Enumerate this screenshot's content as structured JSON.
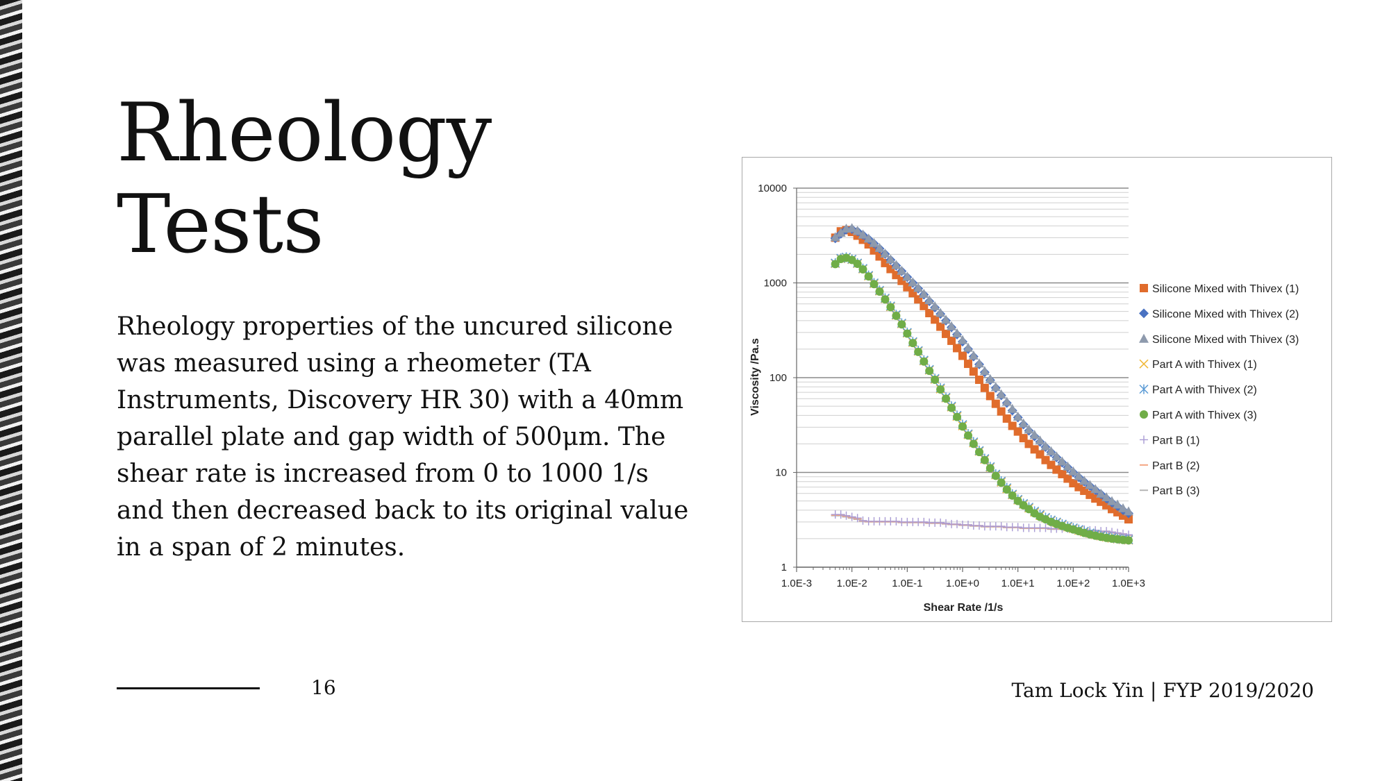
{
  "slide": {
    "title_line1": "Rheology",
    "title_line2": "Tests",
    "body": "Rheology properties of the uncured silicone was measured using a rheometer (TA Instruments, Discovery HR 30) with a 40mm parallel plate and gap width of 500μm. The shear rate is increased from 0 to 1000 1/s and then decreased back to its original value in a span of 2 minutes.",
    "page_number": "16",
    "footer_credit": "Tam Lock Yin | FYP 2019/2020"
  },
  "chart_data": {
    "type": "scatter",
    "xlabel": "Shear Rate /1/s",
    "ylabel": "Viscosity /Pa.s",
    "xscale": "log",
    "yscale": "log",
    "xlim": [
      0.001,
      1000
    ],
    "ylim": [
      1,
      10000
    ],
    "x_tick_labels": [
      "1.0E-3",
      "1.0E-2",
      "1.0E-1",
      "1.0E+0",
      "1.0E+1",
      "1.0E+2",
      "1.0E+3"
    ],
    "y_tick_labels": [
      "1",
      "10",
      "100",
      "1000",
      "10000"
    ],
    "grid": "horizontal major and minor",
    "legend_position": "right",
    "series": [
      {
        "name": "Silicone Mixed with Thivex (1)",
        "marker": "square",
        "color": "#e06c2c",
        "x": [
          0.005,
          0.0063,
          0.0079,
          0.01,
          0.0126,
          0.0158,
          0.02,
          0.0251,
          0.0316,
          0.0398,
          0.05,
          0.0631,
          0.0794,
          0.1,
          0.126,
          0.158,
          0.2,
          0.251,
          0.316,
          0.398,
          0.5,
          0.631,
          0.794,
          1,
          1.26,
          1.58,
          2,
          2.51,
          3.16,
          3.98,
          5,
          6.31,
          7.94,
          10,
          12.6,
          15.8,
          20,
          25.1,
          31.6,
          39.8,
          50,
          63.1,
          79.4,
          100,
          126,
          158,
          200,
          251,
          316,
          398,
          500,
          631,
          794,
          1000
        ],
        "y": [
          3000,
          3500,
          3600,
          3450,
          3150,
          2850,
          2550,
          2200,
          1900,
          1620,
          1400,
          1210,
          1050,
          900,
          780,
          670,
          570,
          480,
          410,
          345,
          290,
          245,
          205,
          170,
          140,
          116,
          95,
          78,
          64,
          53,
          44,
          37,
          31,
          27,
          23,
          20,
          17.5,
          15.5,
          13.5,
          12,
          10.7,
          9.6,
          8.6,
          7.7,
          7,
          6.4,
          5.8,
          5.3,
          4.9,
          4.5,
          4.1,
          3.8,
          3.5,
          3.2
        ]
      },
      {
        "name": "Silicone Mixed with Thivex (2)",
        "marker": "diamond",
        "color": "#4a72c2",
        "x": [
          0.005,
          0.0063,
          0.0079,
          0.01,
          0.0126,
          0.0158,
          0.02,
          0.0251,
          0.0316,
          0.0398,
          0.05,
          0.0631,
          0.0794,
          0.1,
          0.126,
          0.158,
          0.2,
          0.251,
          0.316,
          0.398,
          0.5,
          0.631,
          0.794,
          1,
          1.26,
          1.58,
          2,
          2.51,
          3.16,
          3.98,
          5,
          6.31,
          7.94,
          10,
          12.6,
          15.8,
          20,
          25.1,
          31.6,
          39.8,
          50,
          63.1,
          79.4,
          100,
          126,
          158,
          200,
          251,
          316,
          398,
          500,
          631,
          794,
          1000
        ],
        "y": [
          2950,
          3300,
          3650,
          3700,
          3500,
          3200,
          2900,
          2600,
          2300,
          2020,
          1750,
          1520,
          1330,
          1150,
          1000,
          870,
          750,
          640,
          550,
          470,
          400,
          340,
          285,
          240,
          200,
          167,
          138,
          114,
          94,
          78,
          65,
          54,
          45,
          38,
          32,
          27.5,
          24,
          21,
          18.5,
          16.3,
          14.4,
          12.7,
          11.3,
          10,
          8.9,
          8,
          7.2,
          6.5,
          5.9,
          5.3,
          4.8,
          4.4,
          4,
          3.7
        ]
      },
      {
        "name": "Silicone Mixed with Thivex (3)",
        "marker": "triangle",
        "color": "#8e9aad",
        "x": [
          0.005,
          0.0063,
          0.0079,
          0.01,
          0.0126,
          0.0158,
          0.02,
          0.0251,
          0.0316,
          0.0398,
          0.05,
          0.0631,
          0.0794,
          0.1,
          0.126,
          0.158,
          0.2,
          0.251,
          0.316,
          0.398,
          0.5,
          0.631,
          0.794,
          1,
          1.26,
          1.58,
          2,
          2.51,
          3.16,
          3.98,
          5,
          6.31,
          7.94,
          10,
          12.6,
          15.8,
          20,
          25.1,
          31.6,
          39.8,
          50,
          63.1,
          79.4,
          100,
          126,
          158,
          200,
          251,
          316,
          398,
          500,
          631,
          794,
          1000
        ],
        "y": [
          3050,
          3400,
          3750,
          3800,
          3550,
          3250,
          2950,
          2650,
          2350,
          2050,
          1780,
          1550,
          1350,
          1170,
          1020,
          890,
          770,
          660,
          570,
          485,
          410,
          350,
          295,
          250,
          208,
          172,
          142,
          118,
          97,
          80,
          67,
          56,
          47,
          39,
          33,
          28.5,
          25,
          21.8,
          19,
          16.8,
          14.8,
          13.1,
          11.6,
          10.3,
          9.2,
          8.2,
          7.4,
          6.7,
          6,
          5.5,
          5,
          4.6,
          4.2,
          3.9
        ]
      },
      {
        "name": "Part A with Thivex (1)",
        "marker": "x",
        "color": "#f0b93a",
        "x": [
          0.005,
          0.0063,
          0.0079,
          0.01,
          0.0126,
          0.0158,
          0.02,
          0.0251,
          0.0316,
          0.0398,
          0.05,
          0.0631,
          0.0794,
          0.1,
          0.126,
          0.158,
          0.2,
          0.251,
          0.316,
          0.398,
          0.5,
          0.631,
          0.794,
          1,
          1.26,
          1.58,
          2,
          2.51,
          3.16,
          3.98,
          5,
          6.31,
          7.94,
          10,
          12.6,
          15.8,
          20,
          25.1,
          31.6,
          39.8,
          50,
          63.1,
          79.4,
          100,
          126,
          158,
          200,
          251,
          316,
          398,
          500,
          631,
          794,
          1000
        ],
        "y": [
          1600,
          1800,
          1850,
          1760,
          1600,
          1400,
          1180,
          980,
          820,
          680,
          560,
          455,
          370,
          295,
          235,
          190,
          150,
          120,
          96,
          76,
          61,
          49,
          39,
          31,
          25,
          20.5,
          16.7,
          13.7,
          11.3,
          9.4,
          7.9,
          6.7,
          5.8,
          5.1,
          4.6,
          4.2,
          3.8,
          3.5,
          3.3,
          3.1,
          2.95,
          2.8,
          2.65,
          2.55,
          2.45,
          2.35,
          2.27,
          2.2,
          2.13,
          2.07,
          2.02,
          1.98,
          1.95,
          1.93
        ]
      },
      {
        "name": "Part A with Thivex (2)",
        "marker": "asterisk",
        "color": "#5b9bd5",
        "x": [
          0.005,
          0.0063,
          0.0079,
          0.01,
          0.0126,
          0.0158,
          0.02,
          0.0251,
          0.0316,
          0.0398,
          0.05,
          0.0631,
          0.0794,
          0.1,
          0.126,
          0.158,
          0.2,
          0.251,
          0.316,
          0.398,
          0.5,
          0.631,
          0.794,
          1,
          1.26,
          1.58,
          2,
          2.51,
          3.16,
          3.98,
          5,
          6.31,
          7.94,
          10,
          12.6,
          15.8,
          20,
          25.1,
          31.6,
          39.8,
          50,
          63.1,
          79.4,
          100,
          126,
          158,
          200,
          251,
          316,
          398,
          500,
          631,
          794,
          1000
        ],
        "y": [
          1620,
          1820,
          1870,
          1780,
          1620,
          1420,
          1200,
          1000,
          835,
          690,
          570,
          462,
          376,
          300,
          240,
          193,
          153,
          122,
          98,
          78,
          62,
          50,
          40,
          32,
          25.5,
          21,
          17,
          14,
          11.5,
          9.6,
          8.1,
          6.9,
          5.9,
          5.2,
          4.7,
          4.3,
          3.9,
          3.6,
          3.35,
          3.15,
          3,
          2.85,
          2.7,
          2.6,
          2.5,
          2.4,
          2.3,
          2.23,
          2.16,
          2.1,
          2.05,
          2,
          1.97,
          1.95
        ]
      },
      {
        "name": "Part A with Thivex (3)",
        "marker": "circle",
        "color": "#70ad47",
        "x": [
          0.005,
          0.0063,
          0.0079,
          0.01,
          0.0126,
          0.0158,
          0.02,
          0.0251,
          0.0316,
          0.0398,
          0.05,
          0.0631,
          0.0794,
          0.1,
          0.126,
          0.158,
          0.2,
          0.251,
          0.316,
          0.398,
          0.5,
          0.631,
          0.794,
          1,
          1.26,
          1.58,
          2,
          2.51,
          3.16,
          3.98,
          5,
          6.31,
          7.94,
          10,
          12.6,
          15.8,
          20,
          25.1,
          31.6,
          39.8,
          50,
          63.1,
          79.4,
          100,
          126,
          158,
          200,
          251,
          316,
          398,
          500,
          631,
          794,
          1000
        ],
        "y": [
          1580,
          1790,
          1840,
          1750,
          1590,
          1390,
          1170,
          970,
          810,
          670,
          555,
          450,
          365,
          292,
          232,
          187,
          148,
          118,
          95,
          75,
          60,
          48,
          38.5,
          30.5,
          24.5,
          20,
          16.4,
          13.5,
          11.1,
          9.2,
          7.8,
          6.6,
          5.7,
          5,
          4.5,
          4.1,
          3.7,
          3.4,
          3.2,
          3,
          2.85,
          2.72,
          2.6,
          2.5,
          2.4,
          2.3,
          2.22,
          2.15,
          2.09,
          2.04,
          2,
          1.97,
          1.94,
          1.92
        ]
      },
      {
        "name": "Part B (1)",
        "marker": "plus",
        "color": "#a99bd4",
        "x": [
          0.005,
          0.0063,
          0.0079,
          0.01,
          0.0126,
          0.0158,
          0.02,
          0.0251,
          0.0316,
          0.0398,
          0.05,
          0.0631,
          0.0794,
          0.1,
          0.126,
          0.158,
          0.2,
          0.251,
          0.316,
          0.398,
          0.5,
          0.631,
          0.794,
          1,
          1.26,
          1.58,
          2,
          2.51,
          3.16,
          3.98,
          5,
          6.31,
          7.94,
          10,
          12.6,
          15.8,
          20,
          25.1,
          31.6,
          39.8,
          50,
          63.1,
          79.4,
          100,
          126,
          158,
          200,
          251,
          316,
          398,
          500,
          631,
          794,
          1000
        ],
        "y": [
          3.6,
          3.6,
          3.5,
          3.4,
          3.3,
          3.1,
          3.05,
          3.05,
          3.05,
          3.05,
          3.05,
          3.05,
          3,
          3,
          3,
          3,
          3,
          2.95,
          2.95,
          2.95,
          2.9,
          2.85,
          2.85,
          2.8,
          2.8,
          2.75,
          2.75,
          2.7,
          2.7,
          2.7,
          2.7,
          2.65,
          2.65,
          2.65,
          2.6,
          2.6,
          2.6,
          2.6,
          2.6,
          2.55,
          2.55,
          2.55,
          2.55,
          2.5,
          2.5,
          2.5,
          2.45,
          2.45,
          2.4,
          2.4,
          2.35,
          2.3,
          2.25,
          2.2
        ]
      },
      {
        "name": "Part B (2)",
        "marker": "dash",
        "color": "#f4a582",
        "x": [
          0.005,
          0.0063,
          0.0079,
          0.01,
          0.0126,
          0.0158,
          0.02,
          0.0251,
          0.0316,
          0.0398,
          0.05,
          0.0631,
          0.0794,
          0.1,
          0.126,
          0.158,
          0.2,
          0.251,
          0.316,
          0.398,
          0.5,
          0.631,
          0.794,
          1,
          1.26,
          1.58,
          2,
          2.51,
          3.16,
          3.98,
          5,
          6.31,
          7.94,
          10,
          12.6,
          15.8,
          20,
          25.1,
          31.6,
          39.8,
          50,
          63.1,
          79.4,
          100,
          126,
          158,
          200,
          251,
          316,
          398,
          500,
          631,
          794,
          1000
        ],
        "y": [
          3.55,
          3.55,
          3.45,
          3.35,
          3.25,
          3.08,
          3.03,
          3.03,
          3.03,
          3.03,
          3.03,
          3.03,
          2.98,
          2.98,
          2.98,
          2.98,
          2.98,
          2.93,
          2.93,
          2.93,
          2.88,
          2.84,
          2.84,
          2.79,
          2.79,
          2.74,
          2.74,
          2.69,
          2.69,
          2.69,
          2.69,
          2.64,
          2.64,
          2.64,
          2.59,
          2.59,
          2.59,
          2.59,
          2.59,
          2.54,
          2.54,
          2.54,
          2.54,
          2.49,
          2.49,
          2.49,
          2.44,
          2.44,
          2.39,
          2.39,
          2.34,
          2.29,
          2.24,
          2.19
        ]
      },
      {
        "name": "Part B (3)",
        "marker": "dash",
        "color": "#b5b5b5",
        "x": [
          0.005,
          0.0063,
          0.0079,
          0.01,
          0.0126,
          0.0158,
          0.02,
          0.0251,
          0.0316,
          0.0398,
          0.05,
          0.0631,
          0.0794,
          0.1,
          0.126,
          0.158,
          0.2,
          0.251,
          0.316,
          0.398,
          0.5,
          0.631,
          0.794,
          1,
          1.26,
          1.58,
          2,
          2.51,
          3.16,
          3.98,
          5,
          6.31,
          7.94,
          10,
          12.6,
          15.8,
          20,
          25.1,
          31.6,
          39.8,
          50,
          63.1,
          79.4,
          100,
          126,
          158,
          200,
          251,
          316,
          398,
          500,
          631,
          794,
          1000
        ],
        "y": [
          3.5,
          3.5,
          3.4,
          3.3,
          3.2,
          3.06,
          3.01,
          3.01,
          3.01,
          3.01,
          3.01,
          3.01,
          2.96,
          2.96,
          2.96,
          2.96,
          2.96,
          2.91,
          2.91,
          2.91,
          2.86,
          2.82,
          2.82,
          2.77,
          2.77,
          2.72,
          2.72,
          2.67,
          2.67,
          2.67,
          2.67,
          2.62,
          2.62,
          2.62,
          2.57,
          2.57,
          2.57,
          2.57,
          2.57,
          2.52,
          2.52,
          2.52,
          2.52,
          2.47,
          2.47,
          2.47,
          2.42,
          2.42,
          2.37,
          2.37,
          2.32,
          2.27,
          2.22,
          2.17
        ]
      }
    ]
  }
}
